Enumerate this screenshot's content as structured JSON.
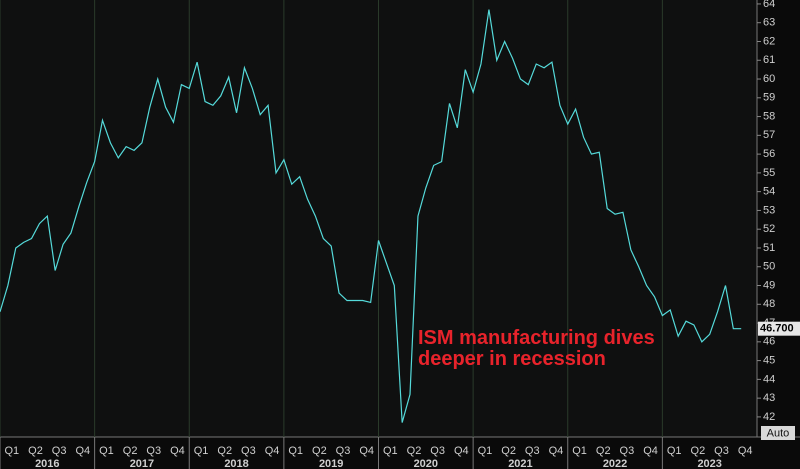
{
  "chart_data": {
    "type": "line",
    "annotation": [
      "ISM manufacturing dives",
      "deeper in recession"
    ],
    "series": [
      {
        "color": "#55dada",
        "x": [
          2016.0,
          2016.083,
          2016.167,
          2016.25,
          2016.333,
          2016.417,
          2016.5,
          2016.583,
          2016.667,
          2016.75,
          2016.833,
          2016.917,
          2017.0,
          2017.083,
          2017.167,
          2017.25,
          2017.333,
          2017.417,
          2017.5,
          2017.583,
          2017.667,
          2017.75,
          2017.833,
          2017.917,
          2018.0,
          2018.083,
          2018.167,
          2018.25,
          2018.333,
          2018.417,
          2018.5,
          2018.583,
          2018.667,
          2018.75,
          2018.833,
          2018.917,
          2019.0,
          2019.083,
          2019.167,
          2019.25,
          2019.333,
          2019.417,
          2019.5,
          2019.583,
          2019.667,
          2019.75,
          2019.833,
          2019.917,
          2020.0,
          2020.083,
          2020.167,
          2020.25,
          2020.333,
          2020.417,
          2020.5,
          2020.583,
          2020.667,
          2020.75,
          2020.833,
          2020.917,
          2021.0,
          2021.083,
          2021.167,
          2021.25,
          2021.333,
          2021.417,
          2021.5,
          2021.583,
          2021.667,
          2021.75,
          2021.833,
          2021.917,
          2022.0,
          2022.083,
          2022.167,
          2022.25,
          2022.333,
          2022.417,
          2022.5,
          2022.583,
          2022.667,
          2022.75,
          2022.833,
          2022.917,
          2023.0,
          2023.083,
          2023.167,
          2023.25,
          2023.333,
          2023.417,
          2023.5,
          2023.583,
          2023.667,
          2023.75,
          2023.833
        ],
        "values": [
          47.6,
          49.0,
          51.0,
          51.3,
          51.5,
          52.3,
          52.7,
          49.8,
          51.2,
          51.8,
          53.2,
          54.5,
          55.6,
          57.8,
          56.6,
          55.8,
          56.4,
          56.2,
          56.6,
          58.5,
          60.0,
          58.5,
          57.7,
          59.7,
          59.5,
          60.9,
          58.8,
          58.6,
          59.1,
          60.1,
          58.2,
          60.6,
          59.5,
          58.1,
          58.6,
          55.0,
          55.7,
          54.4,
          54.8,
          53.6,
          52.7,
          51.5,
          51.1,
          48.6,
          48.2,
          48.2,
          48.2,
          48.1,
          51.4,
          50.2,
          49.0,
          41.7,
          43.2,
          52.7,
          54.2,
          55.4,
          55.6,
          58.7,
          57.4,
          60.5,
          59.3,
          60.8,
          63.7,
          61.0,
          62.0,
          61.1,
          60.0,
          59.7,
          60.8,
          60.6,
          60.9,
          58.6,
          57.6,
          58.4,
          56.9,
          56.0,
          56.1,
          53.1,
          52.8,
          52.9,
          50.9,
          50.0,
          49.0,
          48.4,
          47.4,
          47.7,
          46.3,
          47.1,
          46.9,
          46.0,
          46.4,
          47.6,
          49.0,
          46.7,
          46.7
        ]
      }
    ],
    "last_value_label": "46.700",
    "xlim": [
      2016.0,
      2024.0
    ],
    "ylim": [
      40.93,
      64.21
    ],
    "yticks": [
      42,
      43,
      44,
      45,
      46,
      47,
      48,
      49,
      50,
      51,
      52,
      53,
      54,
      55,
      56,
      57,
      58,
      59,
      60,
      61,
      62,
      63,
      64
    ],
    "xticks": [
      {
        "value": 2016.125,
        "label": "Q1"
      },
      {
        "value": 2016.375,
        "label": "Q2"
      },
      {
        "value": 2016.625,
        "label": "Q3"
      },
      {
        "value": 2016.875,
        "label": "Q4"
      },
      {
        "value": 2017.125,
        "label": "Q1"
      },
      {
        "value": 2017.375,
        "label": "Q2"
      },
      {
        "value": 2017.625,
        "label": "Q3"
      },
      {
        "value": 2017.875,
        "label": "Q4"
      },
      {
        "value": 2018.125,
        "label": "Q1"
      },
      {
        "value": 2018.375,
        "label": "Q2"
      },
      {
        "value": 2018.625,
        "label": "Q3"
      },
      {
        "value": 2018.875,
        "label": "Q4"
      },
      {
        "value": 2019.125,
        "label": "Q1"
      },
      {
        "value": 2019.375,
        "label": "Q2"
      },
      {
        "value": 2019.625,
        "label": "Q3"
      },
      {
        "value": 2019.875,
        "label": "Q4"
      },
      {
        "value": 2020.125,
        "label": "Q1"
      },
      {
        "value": 2020.375,
        "label": "Q2"
      },
      {
        "value": 2020.625,
        "label": "Q3"
      },
      {
        "value": 2020.875,
        "label": "Q4"
      },
      {
        "value": 2021.125,
        "label": "Q1"
      },
      {
        "value": 2021.375,
        "label": "Q2"
      },
      {
        "value": 2021.625,
        "label": "Q3"
      },
      {
        "value": 2021.875,
        "label": "Q4"
      },
      {
        "value": 2022.125,
        "label": "Q1"
      },
      {
        "value": 2022.375,
        "label": "Q2"
      },
      {
        "value": 2022.625,
        "label": "Q3"
      },
      {
        "value": 2022.875,
        "label": "Q4"
      },
      {
        "value": 2023.125,
        "label": "Q1"
      },
      {
        "value": 2023.375,
        "label": "Q2"
      },
      {
        "value": 2023.625,
        "label": "Q3"
      },
      {
        "value": 2023.875,
        "label": "Q4"
      }
    ],
    "year_ticks": [
      {
        "value": 2016.5,
        "label": "2016"
      },
      {
        "value": 2017.5,
        "label": "2017"
      },
      {
        "value": 2018.5,
        "label": "2018"
      },
      {
        "value": 2019.5,
        "label": "2019"
      },
      {
        "value": 2020.5,
        "label": "2020"
      },
      {
        "value": 2021.5,
        "label": "2021"
      },
      {
        "value": 2022.5,
        "label": "2022"
      },
      {
        "value": 2023.5,
        "label": "2023"
      }
    ],
    "button": "Auto"
  }
}
